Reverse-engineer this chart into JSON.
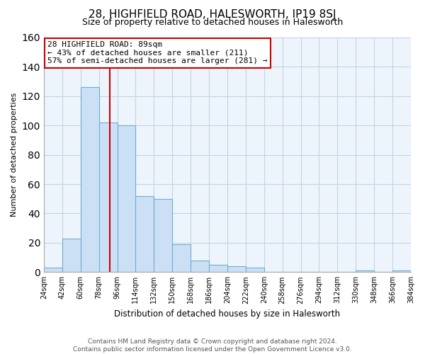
{
  "title": "28, HIGHFIELD ROAD, HALESWORTH, IP19 8SJ",
  "subtitle": "Size of property relative to detached houses in Halesworth",
  "xlabel": "Distribution of detached houses by size in Halesworth",
  "ylabel": "Number of detached properties",
  "bar_edges": [
    24,
    42,
    60,
    78,
    96,
    114,
    132,
    150,
    168,
    186,
    204,
    222,
    240,
    258,
    276,
    294,
    312,
    330,
    348,
    366,
    384
  ],
  "bar_heights": [
    3,
    23,
    126,
    102,
    100,
    52,
    50,
    19,
    8,
    5,
    4,
    3,
    0,
    0,
    0,
    0,
    0,
    1,
    0,
    1
  ],
  "tick_labels": [
    "24sqm",
    "42sqm",
    "60sqm",
    "78sqm",
    "96sqm",
    "114sqm",
    "132sqm",
    "150sqm",
    "168sqm",
    "186sqm",
    "204sqm",
    "222sqm",
    "240sqm",
    "258sqm",
    "276sqm",
    "294sqm",
    "312sqm",
    "330sqm",
    "348sqm",
    "366sqm",
    "384sqm"
  ],
  "bar_color": "#cce0f5",
  "bar_edge_color": "#6baed6",
  "vline_x": 89,
  "vline_color": "#cc0000",
  "annotation_line1": "28 HIGHFIELD ROAD: 89sqm",
  "annotation_line2": "← 43% of detached houses are smaller (211)",
  "annotation_line3": "57% of semi-detached houses are larger (281) →",
  "annotation_box_color": "#ffffff",
  "annotation_box_edge": "#cc0000",
  "ylim": [
    0,
    160
  ],
  "yticks": [
    0,
    20,
    40,
    60,
    80,
    100,
    120,
    140,
    160
  ],
  "footer1": "Contains HM Land Registry data © Crown copyright and database right 2024.",
  "footer2": "Contains public sector information licensed under the Open Government Licence v3.0.",
  "background_color": "#ffffff",
  "plot_bg_color": "#eef4fb",
  "grid_color": "#c0d4e8"
}
